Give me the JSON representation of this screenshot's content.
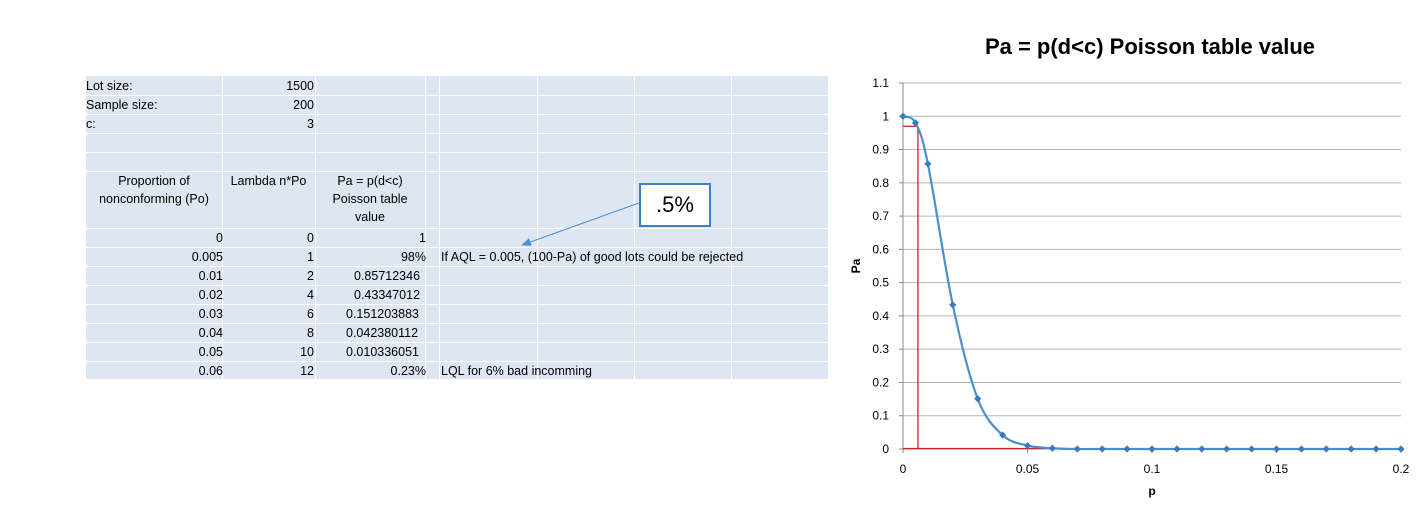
{
  "sheet": {
    "lot_size_label": "Lot size:",
    "lot_size_value": "1500",
    "sample_size_label": "Sample size:",
    "sample_size_value": "200",
    "c_label": "c:",
    "c_value": "3",
    "headers": {
      "po": "Proportion of nonconforming (Po)",
      "lambda": "Lambda n*Po",
      "pa": "Pa = p(d<c) Poisson table value"
    },
    "rows": [
      {
        "po": "0",
        "lambda": "0",
        "pa": "1",
        "note": ""
      },
      {
        "po": "0.005",
        "lambda": "1",
        "pa": "98%",
        "note": "If AQL = 0.005, (100-Pa) of good lots could be rejected"
      },
      {
        "po": "0.01",
        "lambda": "2",
        "pa": "0.85712346",
        "note": ""
      },
      {
        "po": "0.02",
        "lambda": "4",
        "pa": "0.43347012",
        "note": ""
      },
      {
        "po": "0.03",
        "lambda": "6",
        "pa": "0.151203883",
        "note": ""
      },
      {
        "po": "0.04",
        "lambda": "8",
        "pa": "0.042380112",
        "note": ""
      },
      {
        "po": "0.05",
        "lambda": "10",
        "pa": "0.010336051",
        "note": ""
      },
      {
        "po": "0.06",
        "lambda": "12",
        "pa": "0.23%",
        "note": "LQL for 6% bad incomming"
      }
    ]
  },
  "callout": {
    "text": ".5%"
  },
  "colors": {
    "series": "#4a90d0",
    "marker": "#3a7bbf",
    "guide": "#c0262a",
    "callout_border": "#3f7fc3"
  },
  "chart_data": {
    "type": "scatter",
    "title": "Pa = p(d<c) Poisson table value",
    "xlabel": "p",
    "ylabel": "Pa",
    "xlim": [
      0,
      0.2
    ],
    "ylim": [
      0,
      1.1
    ],
    "x_ticks": [
      "0",
      "0.05",
      "0.1",
      "0.15",
      "0.2"
    ],
    "y_ticks": [
      "0",
      "0.1",
      "0.2",
      "0.3",
      "0.4",
      "0.5",
      "0.6",
      "0.7",
      "0.8",
      "0.9",
      "1",
      "1.1"
    ],
    "grid": true,
    "series": [
      {
        "x": [
          0,
          0.005,
          0.01,
          0.02,
          0.03,
          0.04,
          0.05,
          0.06,
          0.07,
          0.08,
          0.09,
          0.1,
          0.11,
          0.12,
          0.13,
          0.14,
          0.15,
          0.16,
          0.17,
          0.18,
          0.19,
          0.2
        ],
        "y": [
          1,
          0.98,
          0.857,
          0.433,
          0.151,
          0.042,
          0.0103,
          0.0023,
          0,
          0,
          0,
          0,
          0,
          0,
          0,
          0,
          0,
          0,
          0,
          0,
          0,
          0
        ]
      }
    ],
    "guide": {
      "x": 0.006,
      "y": 0.97
    }
  }
}
